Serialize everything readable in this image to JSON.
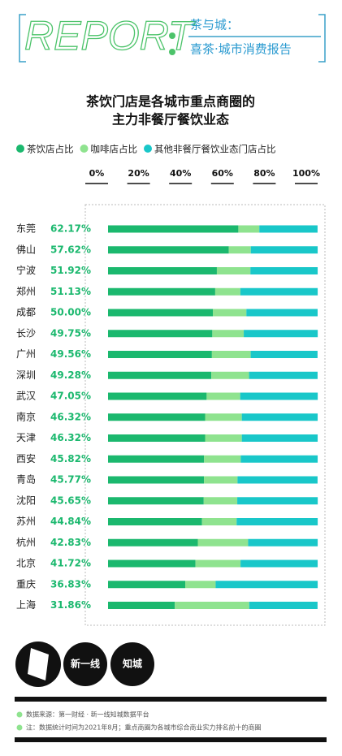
{
  "header": {
    "report": "REPORT",
    "line1": "茶与城：",
    "line2": "喜茶·城市消费报告"
  },
  "chart_data": {
    "type": "bar",
    "orientation": "horizontal",
    "stacked": true,
    "title": [
      "茶饮门店是各城市重点商圈的",
      "主力非餐厅餐饮业态"
    ],
    "categories": [
      "东莞",
      "佛山",
      "宁波",
      "郑州",
      "成都",
      "长沙",
      "广州",
      "深圳",
      "武汉",
      "南京",
      "天津",
      "西安",
      "青岛",
      "沈阳",
      "苏州",
      "杭州",
      "北京",
      "重庆",
      "上海"
    ],
    "series": [
      {
        "name": "茶饮店占比",
        "color": "#1bb86e",
        "values": [
          62.17,
          57.62,
          51.92,
          51.13,
          50.0,
          49.75,
          49.56,
          49.28,
          47.05,
          46.32,
          46.32,
          45.82,
          45.77,
          45.65,
          44.84,
          42.83,
          41.72,
          36.83,
          31.86
        ],
        "value_labels": [
          "62.17%",
          "57.62%",
          "51.92%",
          "51.13%",
          "50.00%",
          "49.75%",
          "49.56%",
          "49.28%",
          "47.05%",
          "46.32%",
          "46.32%",
          "45.82%",
          "45.77%",
          "45.65%",
          "44.84%",
          "42.83%",
          "41.72%",
          "36.83%",
          "31.86%"
        ]
      },
      {
        "name": "咖啡店占比",
        "color": "#8fe38f",
        "values": [
          10,
          10.5,
          16,
          12,
          16,
          15,
          18.5,
          18,
          16,
          17.5,
          17.5,
          17.5,
          16,
          16,
          16.5,
          24,
          21.5,
          14.5,
          35.5
        ]
      },
      {
        "name": "其他非餐厅餐饮业态门店占比",
        "color": "#19c7c9",
        "values": [
          27.8,
          31.9,
          32.1,
          36.9,
          34,
          35.3,
          31.9,
          32.7,
          37,
          36.2,
          36.2,
          36.7,
          38.2,
          38.4,
          38.7,
          33.2,
          36.8,
          48.7,
          32.6
        ]
      }
    ],
    "xlim": [
      0,
      100
    ],
    "xticks": [
      {
        "value": 0,
        "label": "0%"
      },
      {
        "value": 20,
        "label": "20%"
      },
      {
        "value": 40,
        "label": "40%"
      },
      {
        "value": 60,
        "label": "60%"
      },
      {
        "value": 80,
        "label": "80%"
      },
      {
        "value": 100,
        "label": "100%"
      }
    ]
  },
  "footer": {
    "logo1": "新一线",
    "logo2": "知城",
    "notes": [
      "数据来源：第一财经 · 新一线知城数据平台",
      "注：数据统计时间为2021年8月；重点商圈为各城市综合商业实力排名前十的商圈"
    ]
  }
}
